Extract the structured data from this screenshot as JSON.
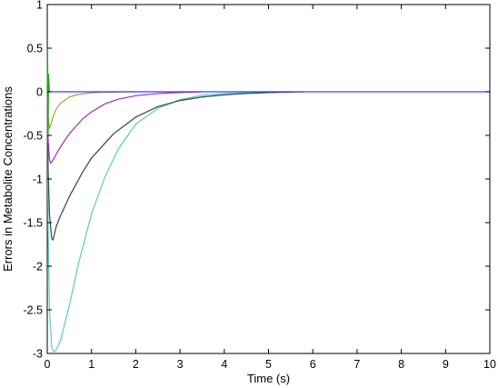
{
  "chart_data": {
    "type": "line",
    "title": "",
    "xlabel": "Time (s)",
    "ylabel": "Errors in Metabolite Concentrations",
    "xlim": [
      0,
      10
    ],
    "ylim": [
      -3,
      1
    ],
    "xticks": [
      "0",
      "1",
      "2",
      "3",
      "4",
      "5",
      "6",
      "7",
      "8",
      "9",
      "10"
    ],
    "yticks": [
      "1",
      "0.5",
      "0",
      "-0.5",
      "-1",
      "-1.5",
      "-2",
      "-2.5",
      "-3"
    ],
    "grid": false,
    "legend": "none",
    "series": [
      {
        "color": "#5cc8c4",
        "x": [
          0,
          0.02,
          0.05,
          0.1,
          0.15,
          0.2,
          0.3,
          0.5,
          0.7,
          1.0,
          1.3,
          1.6,
          2.0,
          2.5,
          3.0,
          3.5,
          4.0,
          4.5,
          5.0
        ],
        "y": [
          0,
          -1.6,
          -2.5,
          -2.93,
          -2.98,
          -2.96,
          -2.85,
          -2.45,
          -1.98,
          -1.4,
          -0.98,
          -0.66,
          -0.37,
          -0.19,
          -0.09,
          -0.04,
          -0.02,
          -0.01,
          0
        ]
      },
      {
        "color": "#2e4a3e",
        "x": [
          0,
          0.02,
          0.05,
          0.1,
          0.13,
          0.2,
          0.3,
          0.5,
          0.8,
          1.0,
          1.5,
          2.0,
          2.5,
          3.0,
          3.5,
          4.0,
          4.5,
          5.0,
          5.8
        ],
        "y": [
          0,
          -0.9,
          -1.4,
          -1.68,
          -1.7,
          -1.55,
          -1.42,
          -1.2,
          -0.92,
          -0.76,
          -0.48,
          -0.29,
          -0.17,
          -0.1,
          -0.06,
          -0.035,
          -0.02,
          -0.01,
          0
        ]
      },
      {
        "color": "#9b2fae",
        "x": [
          0,
          0.02,
          0.05,
          0.08,
          0.12,
          0.2,
          0.3,
          0.5,
          0.8,
          1.0,
          1.3,
          1.6,
          2.0,
          2.5,
          3.0,
          3.5
        ],
        "y": [
          0,
          -0.55,
          -0.78,
          -0.82,
          -0.79,
          -0.72,
          -0.63,
          -0.48,
          -0.31,
          -0.23,
          -0.14,
          -0.085,
          -0.045,
          -0.02,
          -0.008,
          0
        ]
      },
      {
        "color": "#b89a2a",
        "x": [
          0,
          0.02,
          0.05,
          0.08,
          0.12,
          0.2,
          0.3,
          0.5,
          0.7,
          1.0,
          1.3,
          1.6,
          2.0
        ],
        "y": [
          0,
          -0.3,
          -0.42,
          -0.38,
          -0.3,
          -0.2,
          -0.13,
          -0.06,
          -0.03,
          -0.012,
          -0.005,
          -0.002,
          0
        ]
      },
      {
        "color": "#2aa02a",
        "x": [
          0,
          0.006,
          0.01,
          0.015,
          0.02,
          0.03,
          0.05
        ],
        "y": [
          0,
          0.5,
          0.3,
          -0.5,
          -0.5,
          0.2,
          0
        ]
      },
      {
        "color": "#3b3bff",
        "x": [
          0,
          10
        ],
        "y": [
          0,
          0
        ]
      }
    ]
  }
}
